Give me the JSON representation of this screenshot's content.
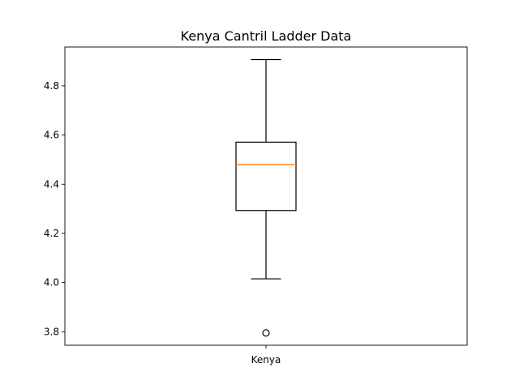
{
  "chart_data": {
    "type": "box",
    "title": "Kenya Cantril Ladder Data",
    "xlabel": "",
    "ylabel": "",
    "categories": [
      "Kenya"
    ],
    "boxes": [
      {
        "name": "Kenya",
        "whisker_low": 4.015,
        "q1": 4.293,
        "median": 4.48,
        "q3": 4.571,
        "whisker_high": 4.907,
        "outliers": [
          3.795
        ]
      }
    ],
    "ylim": [
      3.745,
      4.958
    ],
    "yticks": [
      3.8,
      4.0,
      4.2,
      4.4,
      4.6,
      4.8
    ],
    "ytick_labels": [
      "3.8",
      "4.0",
      "4.2",
      "4.4",
      "4.6",
      "4.8"
    ],
    "grid": false,
    "colors": {
      "box": "#000000",
      "median": "#ff7f0e",
      "outlier": "#000000"
    }
  }
}
